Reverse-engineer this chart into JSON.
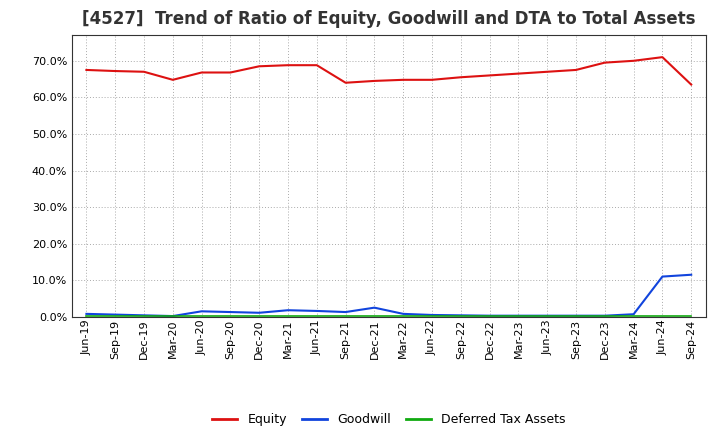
{
  "title": "[4527]  Trend of Ratio of Equity, Goodwill and DTA to Total Assets",
  "x_labels": [
    "Jun-19",
    "Sep-19",
    "Dec-19",
    "Mar-20",
    "Jun-20",
    "Sep-20",
    "Dec-20",
    "Mar-21",
    "Jun-21",
    "Sep-21",
    "Dec-21",
    "Mar-22",
    "Jun-22",
    "Sep-22",
    "Dec-22",
    "Mar-23",
    "Jun-23",
    "Sep-23",
    "Dec-23",
    "Mar-24",
    "Jun-24",
    "Sep-24"
  ],
  "equity": [
    67.5,
    67.2,
    67.0,
    64.8,
    66.8,
    66.8,
    68.5,
    68.8,
    68.8,
    64.0,
    64.5,
    64.8,
    64.8,
    65.5,
    66.0,
    66.5,
    67.0,
    67.5,
    69.5,
    70.0,
    71.0,
    63.5
  ],
  "goodwill": [
    0.8,
    0.6,
    0.4,
    0.2,
    1.5,
    1.3,
    1.1,
    1.8,
    1.6,
    1.3,
    2.5,
    0.8,
    0.5,
    0.4,
    0.3,
    0.3,
    0.3,
    0.3,
    0.3,
    0.7,
    11.0,
    11.5
  ],
  "dta": [
    0.2,
    0.2,
    0.2,
    0.2,
    0.2,
    0.2,
    0.2,
    0.2,
    0.2,
    0.2,
    0.2,
    0.2,
    0.2,
    0.2,
    0.2,
    0.2,
    0.2,
    0.2,
    0.2,
    0.2,
    0.2,
    0.2
  ],
  "equity_color": "#dd1111",
  "goodwill_color": "#1144dd",
  "dta_color": "#11aa11",
  "ylim_min": 0.0,
  "ylim_max": 77.0,
  "yticks": [
    0.0,
    10.0,
    20.0,
    30.0,
    40.0,
    50.0,
    60.0,
    70.0
  ],
  "background_color": "#ffffff",
  "grid_color": "#aaaaaa",
  "legend_labels": [
    "Equity",
    "Goodwill",
    "Deferred Tax Assets"
  ],
  "title_fontsize": 12,
  "tick_fontsize": 8,
  "legend_fontsize": 9
}
